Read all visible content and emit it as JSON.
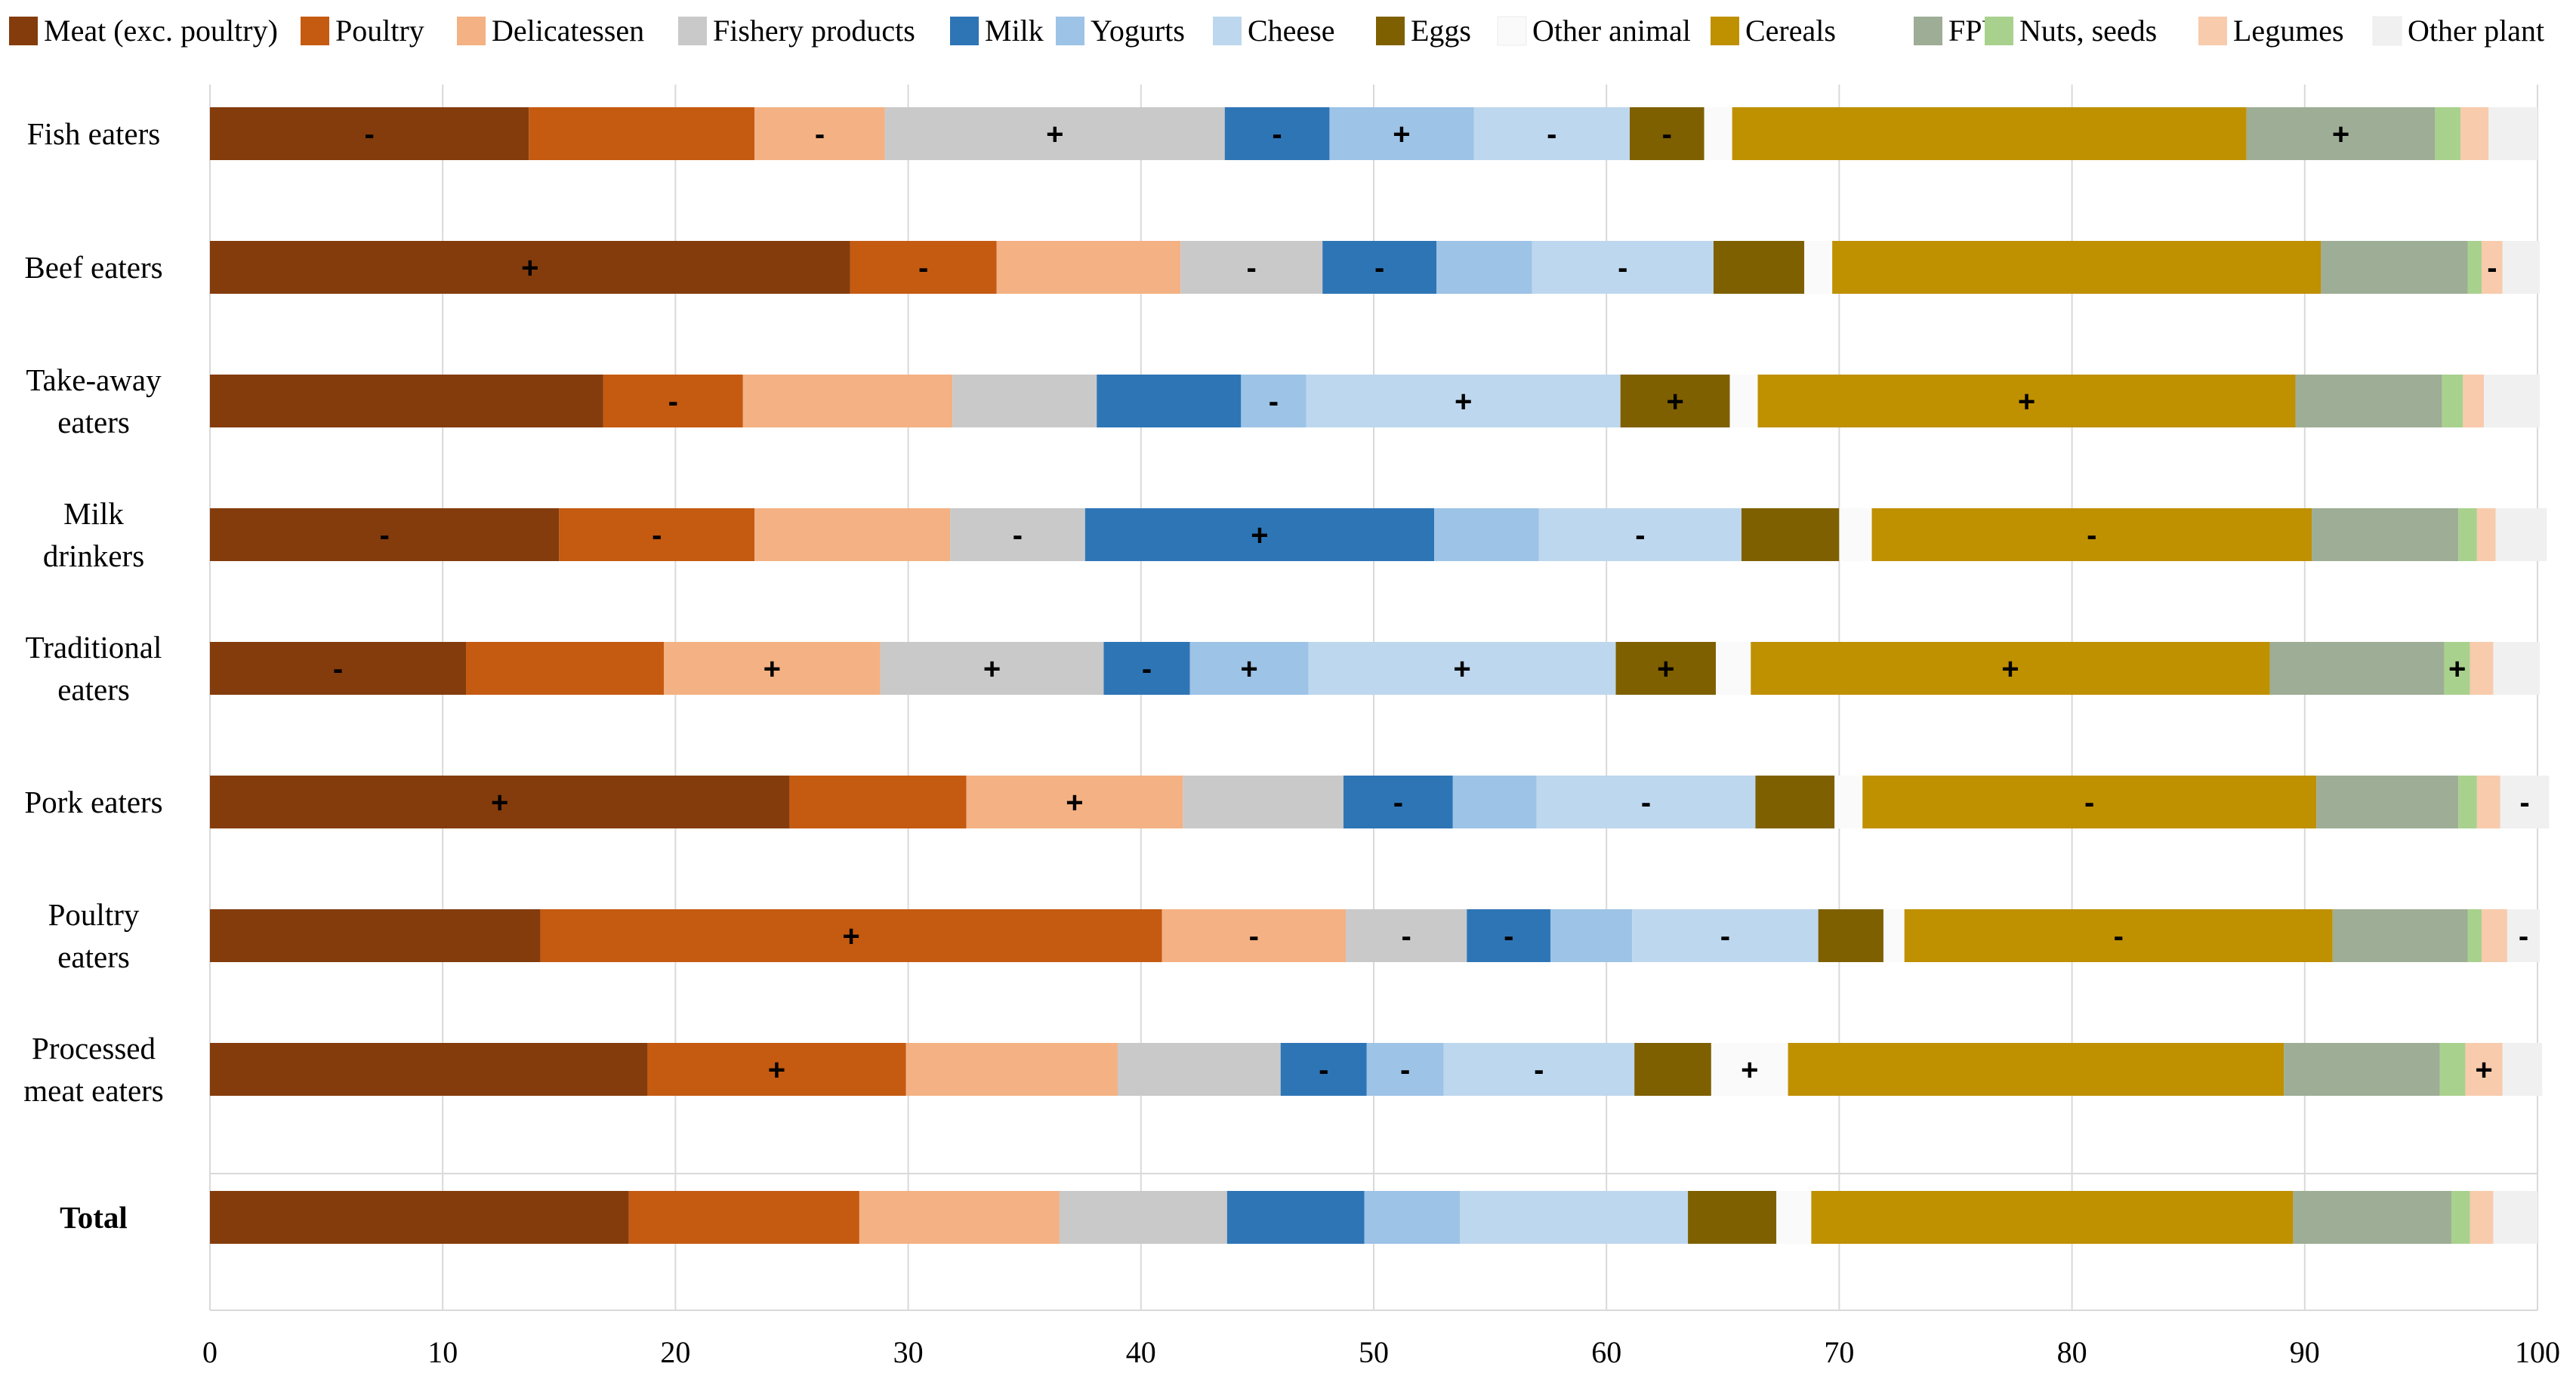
{
  "chart_data": {
    "type": "bar",
    "orientation": "horizontal",
    "stacked": true,
    "title": "",
    "xlabel": "",
    "ylabel": "",
    "xlim": [
      0,
      100
    ],
    "x_ticks": [
      0,
      10,
      20,
      30,
      40,
      50,
      60,
      70,
      80,
      90,
      100
    ],
    "grid": true,
    "legend_position": "top",
    "categories": [
      "Fish eaters",
      "Beef eaters",
      "Take-away eaters",
      "Milk drinkers",
      "Traditional eaters",
      "Pork eaters",
      "Poultry eaters",
      "Processed meat eaters",
      "Total"
    ],
    "category_lines": [
      [
        "Fish eaters"
      ],
      [
        "Beef eaters"
      ],
      [
        "Take-away",
        "eaters"
      ],
      [
        "Milk",
        "drinkers"
      ],
      [
        "Traditional",
        "eaters"
      ],
      [
        "Pork eaters"
      ],
      [
        "Poultry",
        "eaters"
      ],
      [
        "Processed",
        "meat eaters"
      ],
      [
        "Total"
      ]
    ],
    "bold_categories": [
      "Total"
    ],
    "series": [
      {
        "name": "Meat (exc. poultry)",
        "color": "#843C0C",
        "values": [
          13.7,
          27.5,
          16.9,
          15.0,
          11.0,
          24.9,
          14.2,
          18.8,
          18.0
        ],
        "marks": [
          "-",
          "+",
          "",
          "-",
          "-",
          "+",
          "",
          "",
          ""
        ]
      },
      {
        "name": "Poultry",
        "color": "#C55A11",
        "values": [
          9.7,
          6.3,
          6.0,
          8.4,
          8.5,
          7.6,
          26.7,
          11.1,
          9.9
        ],
        "marks": [
          "",
          "-",
          "-",
          "-",
          "",
          "",
          "+",
          "+",
          ""
        ]
      },
      {
        "name": "Delicatessen",
        "color": "#F4B183",
        "values": [
          5.6,
          7.9,
          9.0,
          8.4,
          9.3,
          9.3,
          7.9,
          9.1,
          8.6
        ],
        "marks": [
          "-",
          "",
          "",
          "",
          "+",
          "+",
          "-",
          "",
          ""
        ]
      },
      {
        "name": "Fishery products",
        "color": "#C9C9C9",
        "values": [
          14.6,
          6.1,
          6.2,
          5.8,
          9.6,
          6.9,
          5.2,
          7.0,
          7.2
        ],
        "marks": [
          "+",
          "-",
          "",
          "-",
          "+",
          "",
          "-",
          "",
          ""
        ]
      },
      {
        "name": "Milk",
        "color": "#2E75B6",
        "values": [
          4.5,
          4.9,
          6.2,
          15.0,
          3.7,
          4.7,
          3.6,
          3.7,
          5.9
        ],
        "marks": [
          "-",
          "-",
          "",
          "+",
          "-",
          "-",
          "-",
          "-",
          ""
        ]
      },
      {
        "name": "Yogurts",
        "color": "#9DC3E6",
        "values": [
          6.2,
          4.1,
          2.8,
          4.5,
          5.1,
          3.6,
          3.5,
          3.3,
          4.1
        ],
        "marks": [
          "+",
          "",
          "-",
          "",
          "+",
          "",
          "",
          "-",
          ""
        ]
      },
      {
        "name": "Cheese",
        "color": "#BDD7EE",
        "values": [
          6.7,
          7.8,
          13.5,
          8.7,
          13.2,
          9.4,
          8.0,
          8.2,
          9.8
        ],
        "marks": [
          "-",
          "-",
          "+",
          "-",
          "+",
          "-",
          "-",
          "-",
          ""
        ]
      },
      {
        "name": "Eggs",
        "color": "#7F6000",
        "values": [
          3.2,
          3.9,
          4.7,
          4.2,
          4.3,
          3.4,
          2.8,
          3.3,
          3.8
        ],
        "marks": [
          "-",
          "",
          "+",
          "",
          "+",
          "",
          "",
          "",
          ""
        ]
      },
      {
        "name": "Other animal",
        "color": "#FAFAFA",
        "values": [
          1.2,
          1.2,
          1.2,
          1.4,
          1.5,
          1.2,
          0.9,
          3.3,
          1.5
        ],
        "marks": [
          "",
          "",
          "",
          "",
          "",
          "",
          "",
          "+",
          ""
        ]
      },
      {
        "name": "Cereals",
        "color": "#BF9000",
        "values": [
          22.1,
          21.0,
          23.1,
          18.9,
          22.3,
          19.5,
          18.4,
          21.3,
          20.7
        ],
        "marks": [
          "",
          "",
          "+",
          "-",
          "+",
          "-",
          "-",
          "",
          ""
        ]
      },
      {
        "name": "FPV",
        "color": "#9EAD96",
        "values": [
          8.1,
          6.3,
          6.3,
          6.3,
          7.5,
          6.1,
          5.8,
          6.7,
          6.8
        ],
        "marks": [
          "+",
          "",
          "",
          "",
          "",
          "",
          "",
          "",
          ""
        ]
      },
      {
        "name": "Nuts, seeds",
        "color": "#A9D18E",
        "values": [
          1.1,
          0.6,
          0.9,
          0.8,
          1.1,
          0.8,
          0.6,
          1.1,
          0.8
        ],
        "marks": [
          "",
          "",
          "",
          "",
          "+",
          "",
          "",
          "",
          ""
        ]
      },
      {
        "name": "Legumes",
        "color": "#F8CBAD",
        "values": [
          1.2,
          0.9,
          0.9,
          0.8,
          1.0,
          1.0,
          1.1,
          1.6,
          1.0
        ],
        "marks": [
          "",
          "-",
          "",
          "",
          "",
          "",
          "",
          "+",
          ""
        ]
      },
      {
        "name": "Other plant",
        "color": "#F0F0F0",
        "values": [
          2.1,
          1.6,
          2.4,
          2.2,
          2.0,
          2.1,
          1.4,
          1.7,
          1.9
        ],
        "marks": [
          "",
          "",
          "",
          "",
          "",
          "-",
          "-",
          "",
          ""
        ]
      }
    ]
  }
}
